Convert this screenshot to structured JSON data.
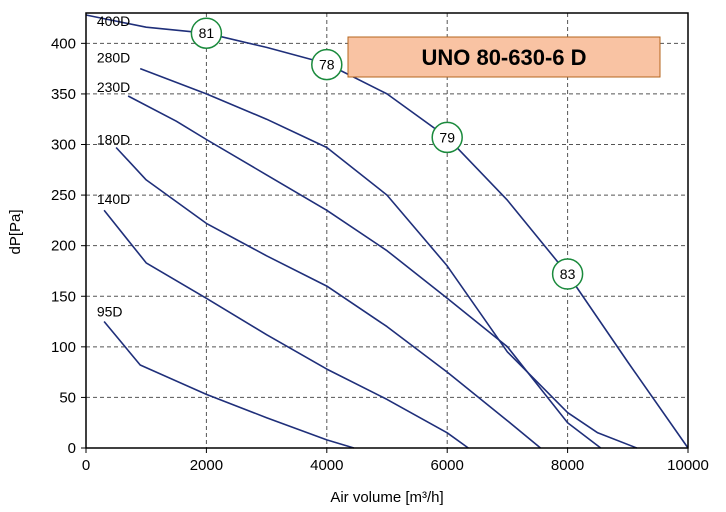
{
  "chart_data": {
    "type": "line",
    "title": "UNO 80-630-6 D",
    "xlabel": "Air volume [m³/h]",
    "ylabel": "dP[Pa]",
    "xlim": [
      0,
      10000
    ],
    "ylim": [
      0,
      430
    ],
    "xticks": [
      0,
      2000,
      4000,
      6000,
      8000,
      10000
    ],
    "yticks": [
      0,
      50,
      100,
      150,
      200,
      250,
      300,
      350,
      400
    ],
    "grid": true,
    "colors": {
      "curve": "#1f2f7a",
      "efficiency_marker": "#1a8a3c",
      "title_box_fill": "#f9c3a3",
      "title_box_border": "#b5651d"
    },
    "series": [
      {
        "name": "400D",
        "points": [
          [
            0,
            428
          ],
          [
            500,
            422
          ],
          [
            1000,
            416
          ],
          [
            2000,
            410
          ],
          [
            3000,
            396
          ],
          [
            4000,
            380
          ],
          [
            5000,
            350
          ],
          [
            6000,
            307
          ],
          [
            7000,
            245
          ],
          [
            8000,
            172
          ],
          [
            9000,
            85
          ],
          [
            10000,
            0
          ]
        ]
      },
      {
        "name": "280D",
        "points": [
          [
            900,
            375
          ],
          [
            2000,
            350
          ],
          [
            3000,
            325
          ],
          [
            4000,
            297
          ],
          [
            5000,
            250
          ],
          [
            6000,
            180
          ],
          [
            7000,
            95
          ],
          [
            8000,
            35
          ],
          [
            8500,
            15
          ],
          [
            9150,
            0
          ]
        ]
      },
      {
        "name": "230D",
        "points": [
          [
            700,
            348
          ],
          [
            1500,
            323
          ],
          [
            2000,
            305
          ],
          [
            3000,
            270
          ],
          [
            4000,
            235
          ],
          [
            5000,
            195
          ],
          [
            6000,
            148
          ],
          [
            7000,
            100
          ],
          [
            8000,
            25
          ],
          [
            8550,
            0
          ]
        ]
      },
      {
        "name": "180D",
        "points": [
          [
            500,
            297
          ],
          [
            1000,
            265
          ],
          [
            2000,
            222
          ],
          [
            3000,
            190
          ],
          [
            4000,
            160
          ],
          [
            5000,
            120
          ],
          [
            6000,
            75
          ],
          [
            7000,
            27
          ],
          [
            7550,
            0
          ]
        ]
      },
      {
        "name": "140D",
        "points": [
          [
            300,
            235
          ],
          [
            1000,
            183
          ],
          [
            2000,
            148
          ],
          [
            3000,
            112
          ],
          [
            4000,
            78
          ],
          [
            5000,
            48
          ],
          [
            6000,
            15
          ],
          [
            6350,
            0
          ]
        ]
      },
      {
        "name": "95D",
        "points": [
          [
            300,
            125
          ],
          [
            900,
            82
          ],
          [
            2000,
            53
          ],
          [
            3000,
            30
          ],
          [
            4000,
            8
          ],
          [
            4450,
            0
          ]
        ]
      }
    ],
    "efficiency_markers": [
      {
        "label": "81",
        "x": 2000,
        "y": 410
      },
      {
        "label": "78",
        "x": 4000,
        "y": 379
      },
      {
        "label": "79",
        "x": 6000,
        "y": 307
      },
      {
        "label": "83",
        "x": 8000,
        "y": 172
      }
    ],
    "curve_labels": [
      {
        "label": "400D",
        "x": 180,
        "y": 422
      },
      {
        "label": "280D",
        "x": 180,
        "y": 386
      },
      {
        "label": "230D",
        "x": 180,
        "y": 357
      },
      {
        "label": "180D",
        "x": 180,
        "y": 305
      },
      {
        "label": "140D",
        "x": 180,
        "y": 246
      },
      {
        "label": "95D",
        "x": 180,
        "y": 135
      }
    ]
  }
}
